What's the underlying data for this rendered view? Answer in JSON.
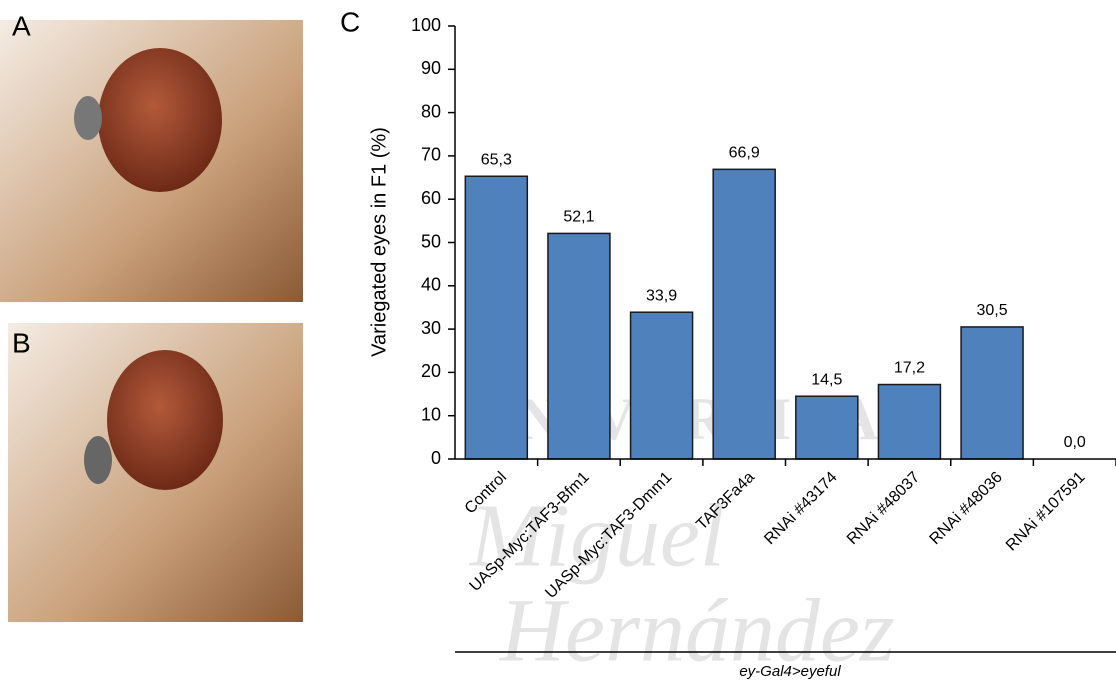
{
  "panels": {
    "a": "A",
    "b": "B",
    "c": "C"
  },
  "watermark": [
    "UNIVERSITAS",
    "Miguel",
    "Hernández"
  ],
  "chart_data": {
    "type": "bar",
    "ylabel": "Variegated eyes in F1 (%)",
    "xlabel": "ey-Gal4>eyeful",
    "categories": [
      "Control",
      "UASp-Myc:TAF3-Bfm1",
      "UASp-Myc:TAF3-Dmm1",
      "TAF3Fa4a",
      "RNAi #43174",
      "RNAi #48037",
      "RNAi #48036",
      "RNAi #107591"
    ],
    "values": [
      65.3,
      52.1,
      33.9,
      66.9,
      14.5,
      17.2,
      30.5,
      0.0
    ],
    "value_labels": [
      "65,3",
      "52,1",
      "33,9",
      "66,9",
      "14,5",
      "17,2",
      "30,5",
      "0,0"
    ],
    "color": "#4f81bd",
    "ylim": [
      0,
      100
    ],
    "yticks": [
      0,
      10,
      20,
      30,
      40,
      50,
      60,
      70,
      80,
      90,
      100
    ]
  }
}
